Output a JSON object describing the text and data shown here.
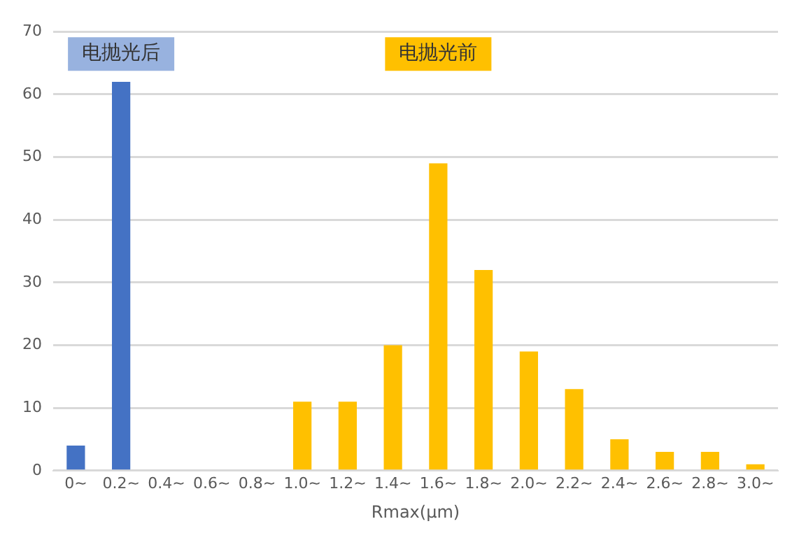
{
  "chart_data": {
    "type": "bar",
    "xlabel": "Rmax(μm)",
    "categories": [
      "0~",
      "0.2~",
      "0.4~",
      "0.6~",
      "0.8~",
      "1.0~",
      "1.2~",
      "1.4~",
      "1.6~",
      "1.8~",
      "2.0~",
      "2.2~",
      "2.4~",
      "2.6~",
      "2.8~",
      "3.0~"
    ],
    "series": [
      {
        "name": "电抛光后",
        "color": "#4472c4",
        "values": [
          4,
          62,
          0,
          0,
          0,
          null,
          null,
          null,
          null,
          null,
          null,
          null,
          null,
          null,
          null,
          null
        ]
      },
      {
        "name": "电抛光前",
        "color": "#ffc000",
        "values": [
          null,
          null,
          null,
          null,
          null,
          11,
          11,
          20,
          49,
          32,
          19,
          13,
          5,
          3,
          3,
          1
        ]
      }
    ],
    "ylim": [
      0,
      70
    ],
    "yticks": [
      0,
      10,
      20,
      30,
      40,
      50,
      60,
      70
    ],
    "grid": "y",
    "legend": false
  }
}
